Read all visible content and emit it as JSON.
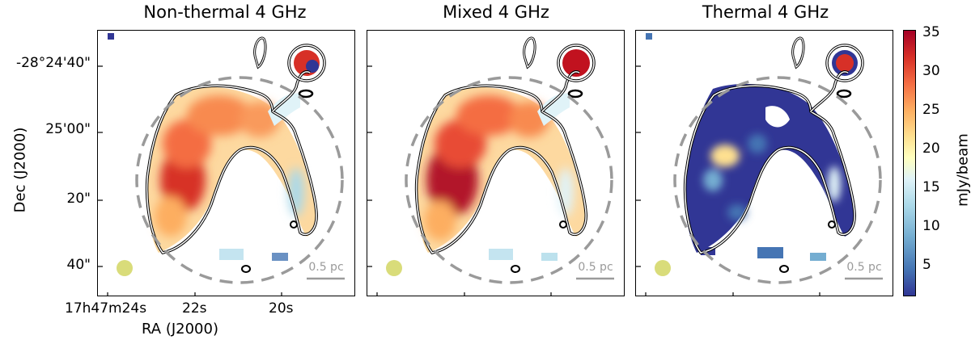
{
  "panels": [
    {
      "title": "Non-thermal 4 GHz",
      "scale_label": "0.5 pc"
    },
    {
      "title": "Mixed 4 GHz",
      "scale_label": "0.5 pc"
    },
    {
      "title": "Thermal 4 GHz",
      "scale_label": "0.5 pc"
    }
  ],
  "axes": {
    "ylabel": "Dec (J2000)",
    "xlabel": "RA (J2000)",
    "dec_ticks": [
      "-28°24'40\"",
      "25'00\"",
      "20\"",
      "40\""
    ],
    "ra_ticks": [
      "17h47m24s",
      "22s",
      "20s"
    ]
  },
  "colorbar": {
    "label": "mJy/beam",
    "ticks": [
      "35",
      "30",
      "25",
      "20",
      "15",
      "10",
      "5"
    ],
    "range": [
      1,
      35
    ]
  },
  "colors": {
    "beam": "#d9dc7a",
    "circle": "#9a9a9a",
    "scalebar": "#9a9a9a"
  }
}
